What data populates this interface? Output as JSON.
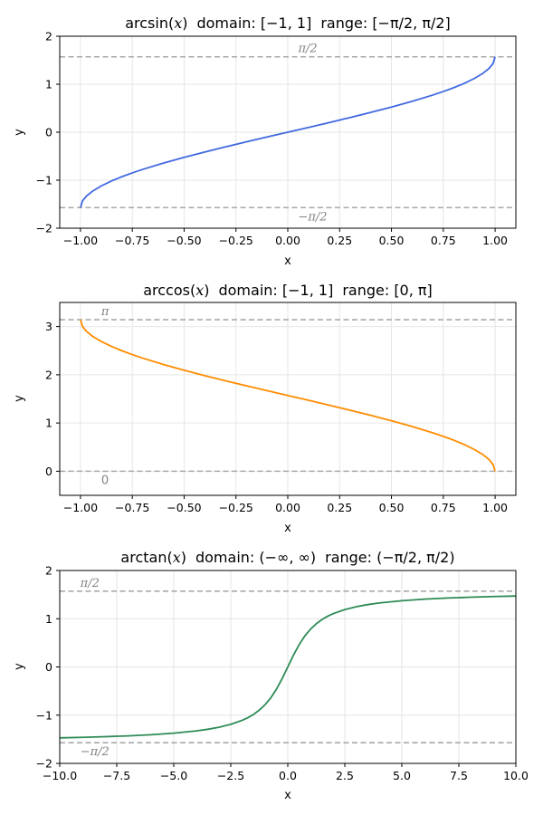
{
  "chart_data": [
    {
      "type": "line",
      "title": {
        "func": "arcsin(",
        "var": "x",
        "close": ")",
        "domain": "domain: [−1, 1]",
        "range": "range: [−π/2,  π/2]"
      },
      "xlabel": "x",
      "ylabel": "y",
      "xlim": [
        -1.1,
        1.1
      ],
      "ylim": [
        -2,
        2
      ],
      "xticks": [
        -1.0,
        -0.75,
        -0.5,
        -0.25,
        0.0,
        0.25,
        0.5,
        0.75,
        1.0
      ],
      "xtick_labels": [
        "−1.00",
        "−0.75",
        "−0.50",
        "−0.25",
        "0.00",
        "0.25",
        "0.50",
        "0.75",
        "1.00"
      ],
      "yticks": [
        -2,
        -1,
        0,
        1,
        2
      ],
      "ytick_labels": [
        "−2",
        "−1",
        "0",
        "1",
        "2"
      ],
      "grid": true,
      "color": "#4169e1",
      "series": [
        {
          "x": [
            -1.0,
            -0.99,
            -0.97,
            -0.94,
            -0.9,
            -0.85,
            -0.8,
            -0.75,
            -0.7,
            -0.6,
            -0.5,
            -0.4,
            -0.3,
            -0.2,
            -0.1,
            0.0,
            0.1,
            0.2,
            0.3,
            0.4,
            0.5,
            0.6,
            0.7,
            0.75,
            0.8,
            0.85,
            0.9,
            0.94,
            0.97,
            0.99,
            1.0
          ],
          "y": [
            -1.571,
            -1.429,
            -1.326,
            -1.223,
            -1.12,
            -1.016,
            -0.927,
            -0.848,
            -0.775,
            -0.644,
            -0.524,
            -0.412,
            -0.305,
            -0.201,
            -0.1,
            0.0,
            0.1,
            0.201,
            0.305,
            0.412,
            0.524,
            0.644,
            0.775,
            0.848,
            0.927,
            1.016,
            1.12,
            1.223,
            1.326,
            1.429,
            1.571
          ]
        }
      ],
      "hlines": [
        {
          "y": 1.5708,
          "label": "π/2",
          "label_x": 0.05,
          "label_pos": "above"
        },
        {
          "y": -1.5708,
          "label": "−π/2",
          "label_x": 0.05,
          "label_pos": "below"
        }
      ]
    },
    {
      "type": "line",
      "title": {
        "func": "arccos(",
        "var": "x",
        "close": ")",
        "domain": "domain: [−1, 1]",
        "range": "range: [0,  π]"
      },
      "xlabel": "x",
      "ylabel": "y",
      "xlim": [
        -1.1,
        1.1
      ],
      "ylim": [
        -0.5,
        3.5
      ],
      "xticks": [
        -1.0,
        -0.75,
        -0.5,
        -0.25,
        0.0,
        0.25,
        0.5,
        0.75,
        1.0
      ],
      "xtick_labels": [
        "−1.00",
        "−0.75",
        "−0.50",
        "−0.25",
        "0.00",
        "0.25",
        "0.50",
        "0.75",
        "1.00"
      ],
      "yticks": [
        0,
        1,
        2,
        3
      ],
      "ytick_labels": [
        "0",
        "1",
        "2",
        "3"
      ],
      "grid": true,
      "color": "#ff8c00",
      "series": [
        {
          "x": [
            -1.0,
            -0.99,
            -0.97,
            -0.94,
            -0.9,
            -0.85,
            -0.8,
            -0.75,
            -0.7,
            -0.6,
            -0.5,
            -0.4,
            -0.3,
            -0.2,
            -0.1,
            0.0,
            0.1,
            0.2,
            0.3,
            0.4,
            0.5,
            0.6,
            0.7,
            0.75,
            0.8,
            0.85,
            0.9,
            0.94,
            0.97,
            0.99,
            1.0
          ],
          "y": [
            3.142,
            3.0,
            2.897,
            2.794,
            2.691,
            2.588,
            2.498,
            2.419,
            2.346,
            2.214,
            2.094,
            1.982,
            1.875,
            1.772,
            1.671,
            1.571,
            1.471,
            1.369,
            1.266,
            1.159,
            1.047,
            0.927,
            0.795,
            0.723,
            0.644,
            0.555,
            0.451,
            0.348,
            0.245,
            0.141,
            0.0
          ]
        }
      ],
      "hlines": [
        {
          "y": 3.1416,
          "label": "π",
          "label_x": -0.9,
          "label_pos": "above"
        },
        {
          "y": 0,
          "label": "0",
          "label_x": -0.9,
          "label_pos": "below"
        }
      ]
    },
    {
      "type": "line",
      "title": {
        "func": "arctan(",
        "var": "x",
        "close": ")",
        "domain": "domain: (−∞, ∞)",
        "range": "range: (−π/2,  π/2)"
      },
      "xlabel": "x",
      "ylabel": "y",
      "xlim": [
        -10,
        10
      ],
      "ylim": [
        -2,
        2
      ],
      "xticks": [
        -10,
        -7.5,
        -5,
        -2.5,
        0,
        2.5,
        5,
        7.5,
        10
      ],
      "xtick_labels": [
        "−10.0",
        "−7.5",
        "−5.0",
        "−2.5",
        "0.0",
        "2.5",
        "5.0",
        "7.5",
        "10.0"
      ],
      "yticks": [
        -2,
        -1,
        0,
        1,
        2
      ],
      "ytick_labels": [
        "−2",
        "−1",
        "0",
        "1",
        "2"
      ],
      "grid": true,
      "color": "#2e8b57",
      "series": [
        {
          "x": [
            -10,
            -9,
            -8,
            -7,
            -6,
            -5,
            -4,
            -3.5,
            -3,
            -2.5,
            -2,
            -1.75,
            -1.5,
            -1.25,
            -1,
            -0.75,
            -0.5,
            -0.25,
            0,
            0.25,
            0.5,
            0.75,
            1,
            1.25,
            1.5,
            1.75,
            2,
            2.5,
            3,
            3.5,
            4,
            5,
            6,
            7,
            8,
            9,
            10
          ],
          "y": [
            -1.471,
            -1.46,
            -1.446,
            -1.429,
            -1.406,
            -1.373,
            -1.326,
            -1.292,
            -1.249,
            -1.19,
            -1.107,
            -1.052,
            -0.983,
            -0.896,
            -0.785,
            -0.644,
            -0.464,
            -0.245,
            0.0,
            0.245,
            0.464,
            0.644,
            0.785,
            0.896,
            0.983,
            1.052,
            1.107,
            1.19,
            1.249,
            1.292,
            1.326,
            1.373,
            1.406,
            1.429,
            1.446,
            1.46,
            1.471
          ]
        }
      ],
      "hlines": [
        {
          "y": 1.5708,
          "label": "π/2",
          "label_x": -9.1,
          "label_pos": "above"
        },
        {
          "y": -1.5708,
          "label": "−π/2",
          "label_x": -9.1,
          "label_pos": "below"
        }
      ]
    }
  ]
}
